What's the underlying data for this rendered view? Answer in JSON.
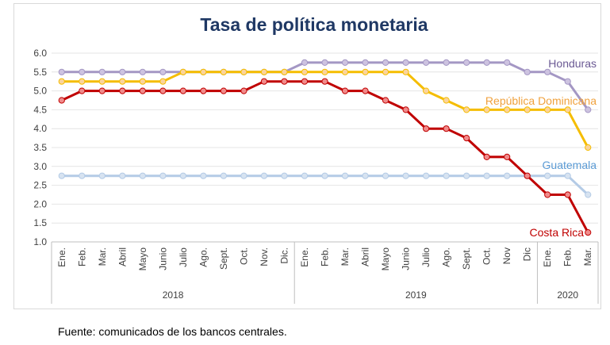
{
  "chart_data": {
    "type": "line",
    "title": "Tasa de política monetaria",
    "ylim": [
      1.0,
      6.0
    ],
    "yticks": [
      "1.0",
      "1.5",
      "2.0",
      "2.5",
      "3.0",
      "3.5",
      "4.0",
      "4.5",
      "5.0",
      "5.5",
      "6.0"
    ],
    "categories": [
      "Ene.",
      "Feb.",
      "Mar.",
      "Abril",
      "Mayo",
      "Junio",
      "Julio",
      "Ago.",
      "Sept.",
      "Oct.",
      "Nov.",
      "Dic.",
      "Ene.",
      "Feb.",
      "Mar.",
      "Abril",
      "Mayo",
      "Junio",
      "Julio",
      "Ago.",
      "Sept.",
      "Oct.",
      "Nov",
      "Dic",
      "Ene.",
      "Feb.",
      "Mar."
    ],
    "years": [
      {
        "label": "2018",
        "count": 12
      },
      {
        "label": "2019",
        "count": 12
      },
      {
        "label": "2020",
        "count": 3
      }
    ],
    "grid": "horizontal",
    "series": [
      {
        "name": "Guatemala",
        "color": "#b4cbe6",
        "marker": "#d7e3f1",
        "label_color": "#5b9bd5",
        "values": [
          2.75,
          2.75,
          2.75,
          2.75,
          2.75,
          2.75,
          2.75,
          2.75,
          2.75,
          2.75,
          2.75,
          2.75,
          2.75,
          2.75,
          2.75,
          2.75,
          2.75,
          2.75,
          2.75,
          2.75,
          2.75,
          2.75,
          2.75,
          2.75,
          2.75,
          2.75,
          2.25
        ]
      },
      {
        "name": "Honduras",
        "color": "#a497c4",
        "marker": "#cdc3e0",
        "label_color": "#6b5a94",
        "values": [
          5.5,
          5.5,
          5.5,
          5.5,
          5.5,
          5.5,
          5.5,
          5.5,
          5.5,
          5.5,
          5.5,
          5.5,
          5.75,
          5.75,
          5.75,
          5.75,
          5.75,
          5.75,
          5.75,
          5.75,
          5.75,
          5.75,
          5.75,
          5.5,
          5.5,
          5.25,
          4.5
        ]
      },
      {
        "name": "República Dominicana",
        "color": "#f5bd00",
        "marker": "#fbd49c",
        "label_color": "#f0a13c",
        "values": [
          5.25,
          5.25,
          5.25,
          5.25,
          5.25,
          5.25,
          5.5,
          5.5,
          5.5,
          5.5,
          5.5,
          5.5,
          5.5,
          5.5,
          5.5,
          5.5,
          5.5,
          5.5,
          5.0,
          4.75,
          4.5,
          4.5,
          4.5,
          4.5,
          4.5,
          4.5,
          3.5
        ]
      },
      {
        "name": "Costa Rica",
        "color": "#c00000",
        "marker": "#f08b8b",
        "label_color": "#c00000",
        "values": [
          4.75,
          5.0,
          5.0,
          5.0,
          5.0,
          5.0,
          5.0,
          5.0,
          5.0,
          5.0,
          5.25,
          5.25,
          5.25,
          5.25,
          5.0,
          5.0,
          4.75,
          4.5,
          4.0,
          4.0,
          3.75,
          3.25,
          3.25,
          2.75,
          2.25,
          2.25,
          1.25
        ]
      }
    ]
  },
  "source": "Fuente: comunicados de los bancos centrales."
}
